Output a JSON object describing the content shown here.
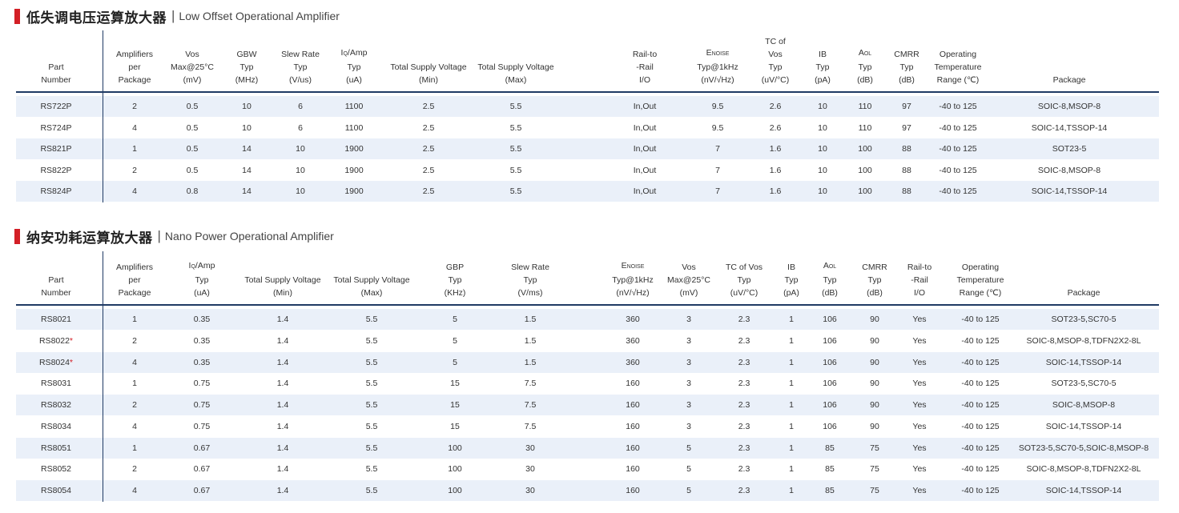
{
  "section1": {
    "title_zh": "低失调电压运算放大器",
    "separator": "|",
    "title_en": "Low Offset Operational Amplifier",
    "headers": {
      "part": [
        "Part",
        "Number"
      ],
      "amplifiers": [
        "Amplifiers",
        "per",
        "Package"
      ],
      "vos": [
        "Vos",
        "Max@25°C",
        "(mV)"
      ],
      "gbw": [
        "GBW",
        "Typ",
        "(MHz)"
      ],
      "slew": [
        "Slew Rate",
        "Typ",
        "(V/us)"
      ],
      "iq": [
        "IQ/Amp",
        "Typ",
        "(uA)"
      ],
      "vmin": [
        "Total Supply Voltage",
        "(Min)"
      ],
      "vmax": [
        "Total Supply Voltage",
        "(Max)"
      ],
      "rail": [
        "Rail-to",
        "-Rail",
        "I/O"
      ],
      "enoise": [
        "ENOISE",
        "Typ@1kHz",
        "(nV/√Hz)"
      ],
      "tc": [
        "TC of",
        "Vos",
        "Typ",
        "(uV/°C)"
      ],
      "ib": [
        "IB",
        "Typ",
        "(pA)"
      ],
      "aol": [
        "AOL",
        "Typ",
        "(dB)"
      ],
      "cmrr": [
        "CMRR",
        "Typ",
        "(dB)"
      ],
      "temp": [
        "Operating",
        "Temperature",
        "Range (℃)"
      ],
      "package": [
        "Package"
      ]
    },
    "rows": [
      [
        "RS722P",
        "2",
        "0.5",
        "10",
        "6",
        "1100",
        "2.5",
        "5.5",
        "In,Out",
        "9.5",
        "2.6",
        "10",
        "110",
        "97",
        "-40 to 125",
        "SOIC-8,MSOP-8"
      ],
      [
        "RS724P",
        "4",
        "0.5",
        "10",
        "6",
        "1100",
        "2.5",
        "5.5",
        "In,Out",
        "9.5",
        "2.6",
        "10",
        "110",
        "97",
        "-40 to 125",
        "SOIC-14,TSSOP-14"
      ],
      [
        "RS821P",
        "1",
        "0.5",
        "14",
        "10",
        "1900",
        "2.5",
        "5.5",
        "In,Out",
        "7",
        "1.6",
        "10",
        "100",
        "88",
        "-40 to 125",
        "SOT23-5"
      ],
      [
        "RS822P",
        "2",
        "0.5",
        "14",
        "10",
        "1900",
        "2.5",
        "5.5",
        "In,Out",
        "7",
        "1.6",
        "10",
        "100",
        "88",
        "-40 to 125",
        "SOIC-8,MSOP-8"
      ],
      [
        "RS824P",
        "4",
        "0.8",
        "14",
        "10",
        "1900",
        "2.5",
        "5.5",
        "In,Out",
        "7",
        "1.6",
        "10",
        "100",
        "88",
        "-40 to 125",
        "SOIC-14,TSSOP-14"
      ]
    ]
  },
  "section2": {
    "title_zh": "纳安功耗运算放大器",
    "separator": "|",
    "title_en": "Nano Power Operational Amplifier",
    "headers": {
      "part": [
        "Part",
        "Number"
      ],
      "amplifiers": [
        "Amplifiers",
        "per",
        "Package"
      ],
      "iq": [
        "IQ/Amp",
        "Typ",
        "(uA)"
      ],
      "vmin": [
        "Total Supply Voltage",
        "(Min)"
      ],
      "vmax": [
        "Total Supply Voltage",
        "(Max)"
      ],
      "gbp": [
        "GBP",
        "Typ",
        "(KHz)"
      ],
      "slew": [
        "Slew Rate",
        "Typ",
        "(V/ms)"
      ],
      "enoise": [
        "ENOISE",
        "Typ@1kHz",
        "(nV/√Hz)"
      ],
      "vos": [
        "Vos",
        "Max@25°C",
        "(mV)"
      ],
      "tc": [
        "TC of Vos",
        "Typ",
        "(uV/°C)"
      ],
      "ib": [
        "IB",
        "Typ",
        "(pA)"
      ],
      "aol": [
        "AOL",
        "Typ",
        "(dB)"
      ],
      "cmrr": [
        "CMRR",
        "Typ",
        "(dB)"
      ],
      "rail": [
        "Rail-to",
        "-Rail",
        "I/O"
      ],
      "temp": [
        "Operating",
        "Temperature",
        "Range (℃)"
      ],
      "package": [
        "Package"
      ]
    },
    "rows": [
      [
        "RS8021",
        "1",
        "0.35",
        "1.4",
        "5.5",
        "5",
        "1.5",
        "360",
        "3",
        "2.3",
        "1",
        "106",
        "90",
        "Yes",
        "-40 to 125",
        "SOT23-5,SC70-5"
      ],
      [
        "RS8022*",
        "2",
        "0.35",
        "1.4",
        "5.5",
        "5",
        "1.5",
        "360",
        "3",
        "2.3",
        "1",
        "106",
        "90",
        "Yes",
        "-40 to 125",
        "SOIC-8,MSOP-8,TDFN2X2-8L"
      ],
      [
        "RS8024*",
        "4",
        "0.35",
        "1.4",
        "5.5",
        "5",
        "1.5",
        "360",
        "3",
        "2.3",
        "1",
        "106",
        "90",
        "Yes",
        "-40 to 125",
        "SOIC-14,TSSOP-14"
      ],
      [
        "RS8031",
        "1",
        "0.75",
        "1.4",
        "5.5",
        "15",
        "7.5",
        "160",
        "3",
        "2.3",
        "1",
        "106",
        "90",
        "Yes",
        "-40 to 125",
        "SOT23-5,SC70-5"
      ],
      [
        "RS8032",
        "2",
        "0.75",
        "1.4",
        "5.5",
        "15",
        "7.5",
        "160",
        "3",
        "2.3",
        "1",
        "106",
        "90",
        "Yes",
        "-40 to 125",
        "SOIC-8,MSOP-8"
      ],
      [
        "RS8034",
        "4",
        "0.75",
        "1.4",
        "5.5",
        "15",
        "7.5",
        "160",
        "3",
        "2.3",
        "1",
        "106",
        "90",
        "Yes",
        "-40 to 125",
        "SOIC-14,TSSOP-14"
      ],
      [
        "RS8051",
        "1",
        "0.67",
        "1.4",
        "5.5",
        "100",
        "30",
        "160",
        "5",
        "2.3",
        "1",
        "85",
        "75",
        "Yes",
        "-40 to 125",
        "SOT23-5,SC70-5,SOIC-8,MSOP-8"
      ],
      [
        "RS8052",
        "2",
        "0.67",
        "1.4",
        "5.5",
        "100",
        "30",
        "160",
        "5",
        "2.3",
        "1",
        "85",
        "75",
        "Yes",
        "-40 to 125",
        "SOIC-8,MSOP-8,TDFN2X2-8L"
      ],
      [
        "RS8054",
        "4",
        "0.67",
        "1.4",
        "5.5",
        "100",
        "30",
        "160",
        "5",
        "2.3",
        "1",
        "85",
        "75",
        "Yes",
        "-40 to 125",
        "SOIC-14,TSSOP-14"
      ]
    ]
  }
}
